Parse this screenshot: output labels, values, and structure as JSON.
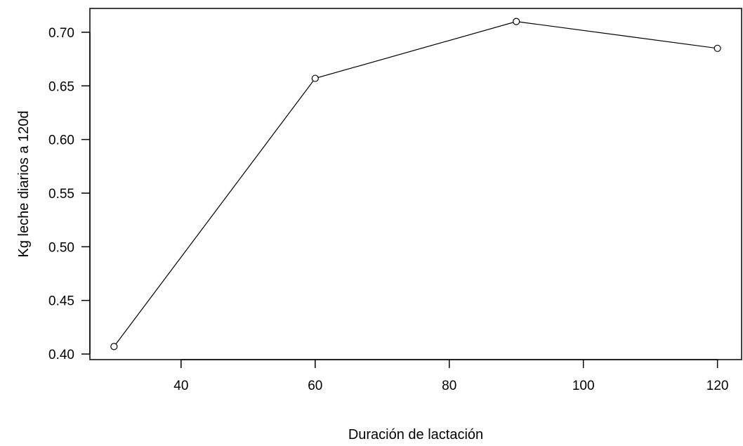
{
  "chart_data": {
    "type": "line",
    "title": "",
    "xlabel": "Duración de lactación",
    "ylabel": "Kg leche diarios a 120d",
    "x": [
      30,
      60,
      90,
      120
    ],
    "series": [
      {
        "values": [
          0.407,
          0.657,
          0.71,
          0.685
        ]
      }
    ],
    "xlim": [
      26.4,
      123.6
    ],
    "ylim": [
      0.3948,
      0.7222
    ],
    "xticks": [
      40,
      60,
      80,
      100,
      120
    ],
    "xtick_labels": [
      "40",
      "60",
      "80",
      "100",
      "120"
    ],
    "yticks": [
      0.4,
      0.45,
      0.5,
      0.55,
      0.6,
      0.65,
      0.7
    ],
    "ytick_labels": [
      "0.40",
      "0.45",
      "0.50",
      "0.55",
      "0.60",
      "0.65",
      "0.70"
    ],
    "markers": "open-circle",
    "grid": false,
    "legend": "none",
    "line_color": "#000000"
  }
}
